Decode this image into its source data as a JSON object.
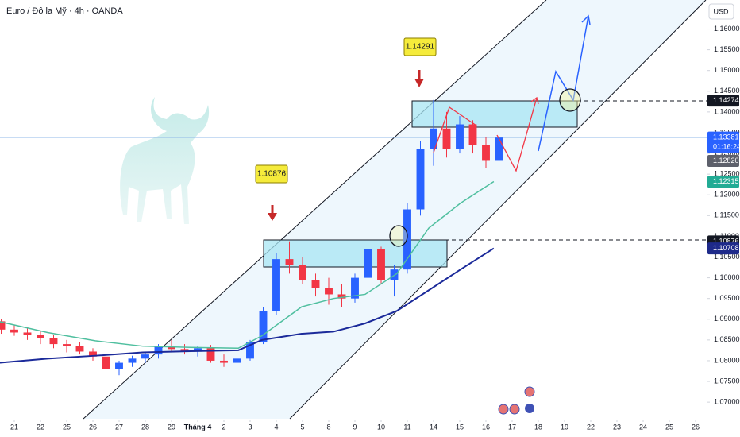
{
  "chart_data": {
    "type": "candlestick",
    "title": "Euro / Đô la Mỹ · 4h · OANDA",
    "currency": "USD",
    "up_color": "#2962ff",
    "down_color": "#f23645",
    "x": [
      -0.5,
      0,
      0.5,
      1,
      1.5,
      2,
      2.5,
      3,
      3.5,
      4,
      4.5,
      5,
      5.5,
      6,
      6.5,
      7,
      7.5,
      8,
      8.5,
      9,
      9.5,
      10,
      10.5,
      11,
      11.5,
      12,
      12.5,
      13,
      13.5,
      14,
      14.5,
      15,
      15.5,
      16,
      16.5,
      17,
      17.5,
      18,
      18.5
    ],
    "open": [
      1.0895,
      1.0875,
      1.0868,
      1.0862,
      1.0855,
      1.084,
      1.0835,
      1.0822,
      1.081,
      1.078,
      1.0795,
      1.0805,
      1.0815,
      1.0835,
      1.0828,
      1.0822,
      1.083,
      1.08,
      1.0795,
      1.0805,
      1.0845,
      1.092,
      1.1045,
      1.103,
      1.0995,
      1.0975,
      1.096,
      1.095,
      1.1,
      1.107,
      1.0995,
      1.102,
      1.1165,
      1.131,
      1.136,
      1.131,
      1.137,
      1.132,
      1.1282
    ],
    "high": [
      1.09,
      1.0885,
      1.088,
      1.087,
      1.0862,
      1.085,
      1.0845,
      1.083,
      1.082,
      1.08,
      1.0812,
      1.082,
      1.084,
      1.085,
      1.084,
      1.0835,
      1.0838,
      1.0815,
      1.081,
      1.085,
      1.093,
      1.106,
      1.1088,
      1.105,
      1.101,
      1.1,
      1.0985,
      1.101,
      1.1085,
      1.1075,
      1.103,
      1.118,
      1.133,
      1.1429,
      1.14,
      1.139,
      1.138,
      1.134,
      1.1345
    ],
    "low": [
      1.0865,
      1.086,
      1.085,
      1.084,
      1.083,
      1.082,
      1.0815,
      1.08,
      1.077,
      1.0765,
      1.0785,
      1.0795,
      1.0805,
      1.082,
      1.0815,
      1.081,
      1.0795,
      1.0785,
      1.0785,
      1.08,
      1.084,
      1.091,
      1.101,
      1.0985,
      1.0955,
      1.0935,
      1.093,
      1.094,
      1.099,
      1.0985,
      1.0955,
      1.101,
      1.115,
      1.127,
      1.129,
      1.13,
      1.13,
      1.1265,
      1.1275
    ],
    "close": [
      1.0875,
      1.0868,
      1.0862,
      1.0855,
      1.084,
      1.0835,
      1.0822,
      1.081,
      1.078,
      1.0795,
      1.0805,
      1.0815,
      1.0835,
      1.0828,
      1.0822,
      1.083,
      1.08,
      1.0795,
      1.0805,
      1.0845,
      1.092,
      1.1045,
      1.103,
      1.0995,
      1.0975,
      1.096,
      1.095,
      1.1,
      1.107,
      1.0995,
      1.102,
      1.1165,
      1.131,
      1.136,
      1.131,
      1.137,
      1.132,
      1.1282,
      1.1338
    ],
    "series": [
      {
        "color": "#4fbf9f",
        "x": [
          -0.55,
          1.27,
          3.09,
          4.9,
          6.73,
          8.55,
          9.45,
          10.97,
          12.18,
          13.39,
          14.6,
          15.82,
          17.03,
          18.3
        ],
        "values": [
          1.0894,
          1.0868,
          1.0848,
          1.0835,
          1.0832,
          1.083,
          1.086,
          1.093,
          1.095,
          1.096,
          1.101,
          1.112,
          1.118,
          1.1232
        ]
      },
      {
        "color": "#1b2a9a",
        "x": [
          -0.55,
          1.27,
          3.09,
          4.9,
          6.73,
          8.55,
          9.45,
          10.97,
          12.18,
          13.39,
          14.6,
          15.82,
          17.03,
          18.3
        ],
        "values": [
          1.0795,
          1.0805,
          1.0812,
          1.082,
          1.0823,
          1.0825,
          1.085,
          1.0865,
          1.087,
          1.089,
          1.092,
          1.097,
          1.102,
          1.1071
        ]
      }
    ],
    "xlim": [
      -0.545,
      26.424
    ],
    "xticks": [
      {
        "value": 0,
        "label": "21"
      },
      {
        "value": 1,
        "label": "22"
      },
      {
        "value": 2,
        "label": "25"
      },
      {
        "value": 3,
        "label": "26"
      },
      {
        "value": 4,
        "label": "27"
      },
      {
        "value": 5,
        "label": "28"
      },
      {
        "value": 6,
        "label": "29"
      },
      {
        "value": 7,
        "label": "Tháng 4"
      },
      {
        "value": 8,
        "label": "2"
      },
      {
        "value": 9,
        "label": "3"
      },
      {
        "value": 10,
        "label": "4"
      },
      {
        "value": 11,
        "label": "5"
      },
      {
        "value": 12,
        "label": "8"
      },
      {
        "value": 13,
        "label": "9"
      },
      {
        "value": 14,
        "label": "10"
      },
      {
        "value": 15,
        "label": "11"
      },
      {
        "value": 16,
        "label": "14"
      },
      {
        "value": 17,
        "label": "15"
      },
      {
        "value": 18,
        "label": "16"
      },
      {
        "value": 19,
        "label": "17"
      },
      {
        "value": 20,
        "label": "18"
      },
      {
        "value": 21,
        "label": "19"
      },
      {
        "value": 22,
        "label": "22"
      },
      {
        "value": 23,
        "label": "23"
      },
      {
        "value": 24,
        "label": "24"
      },
      {
        "value": 25,
        "label": "25"
      },
      {
        "value": 26,
        "label": "26"
      }
    ],
    "ylim": [
      1.066,
      1.167
    ],
    "yticks": [
      {
        "value": 1.07,
        "label": "1.07000"
      },
      {
        "value": 1.075,
        "label": "1.07500"
      },
      {
        "value": 1.08,
        "label": "1.08000"
      },
      {
        "value": 1.085,
        "label": "1.08500"
      },
      {
        "value": 1.09,
        "label": "1.09000"
      },
      {
        "value": 1.095,
        "label": "1.09500"
      },
      {
        "value": 1.1,
        "label": "1.10000"
      },
      {
        "value": 1.105,
        "label": "1.10500"
      },
      {
        "value": 1.11,
        "label": "1.11000"
      },
      {
        "value": 1.115,
        "label": "1.11500"
      },
      {
        "value": 1.12,
        "label": "1.12000"
      },
      {
        "value": 1.125,
        "label": "1.12500"
      },
      {
        "value": 1.13,
        "label": "1.13000"
      },
      {
        "value": 1.135,
        "label": "1.13500"
      },
      {
        "value": 1.14,
        "label": "1.14000"
      },
      {
        "value": 1.145,
        "label": "1.14500"
      },
      {
        "value": 1.15,
        "label": "1.15000"
      },
      {
        "value": 1.155,
        "label": "1.15500"
      },
      {
        "value": 1.16,
        "label": "1.16000"
      }
    ],
    "price_tags": [
      {
        "value": 1.14274,
        "label": "1.14274",
        "color": "#131722"
      },
      {
        "value": 1.13381,
        "label": "1.13381",
        "color": "#2962ff",
        "countdown": "01:16:24"
      },
      {
        "value": 1.1282,
        "label": "1.12820",
        "color": "#5d606b"
      },
      {
        "value": 1.12315,
        "label": "1.12315",
        "color": "#22ab94"
      },
      {
        "value": 1.10876,
        "label": "1.10876",
        "color": "#131722"
      },
      {
        "value": 1.10708,
        "label": "1.10708",
        "color": "#1e2a8a"
      }
    ],
    "callouts": [
      "1.10876",
      "1.14291"
    ]
  }
}
